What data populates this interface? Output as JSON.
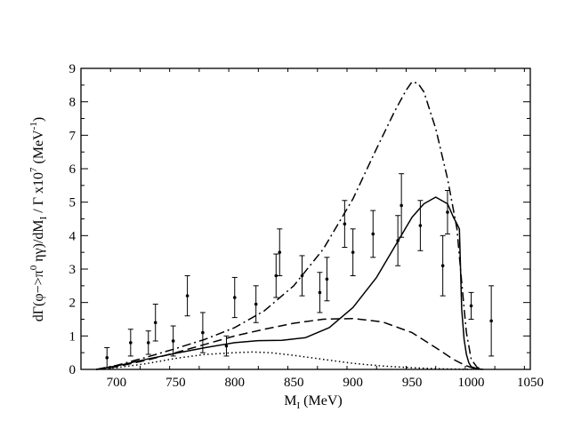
{
  "chart_data": {
    "type": "line",
    "title": "",
    "xlabel": {
      "main": "M",
      "sub": "I",
      "rest": " (MeV)"
    },
    "ylabel": {
      "p1": "dΓ(φ−>π",
      "sup1": "0",
      "p2": " ηγ)/dM",
      "sub1": "I",
      "p3": " / Γ  x10",
      "sup2": "7",
      "p4": " (MeV",
      "sup3": "-1",
      "p5": ")"
    },
    "xlim": [
      670,
      1050
    ],
    "ylim": [
      0,
      9
    ],
    "x_ticks": [
      700,
      750,
      800,
      850,
      900,
      950,
      1000,
      1050
    ],
    "x_tick_labels": [
      "700",
      "750",
      "800",
      "850",
      "900",
      "950",
      "1000",
      "1050"
    ],
    "y_ticks": [
      0,
      1,
      2,
      3,
      4,
      5,
      6,
      7,
      8,
      9
    ],
    "y_tick_labels": [
      "0",
      "1",
      "2",
      "3",
      "4",
      "5",
      "6",
      "7",
      "8",
      "9"
    ],
    "colors": {
      "ink": "#000000",
      "background": "#ffffff"
    },
    "series": [
      {
        "name": "solid",
        "dash": "solid",
        "x": [
          683,
          700,
          725,
          750,
          775,
          800,
          820,
          840,
          860,
          880,
          900,
          920,
          940,
          950,
          960,
          970,
          980,
          985,
          988,
          990,
          991,
          992,
          994,
          996,
          998,
          1000,
          1005,
          1010
        ],
        "y": [
          0,
          0.1,
          0.3,
          0.48,
          0.65,
          0.8,
          0.86,
          0.87,
          0.95,
          1.25,
          1.85,
          2.75,
          3.95,
          4.55,
          4.95,
          5.15,
          4.95,
          4.55,
          4.35,
          4.2,
          3.0,
          1.8,
          0.9,
          0.45,
          0.2,
          0.08,
          0.02,
          0
        ]
      },
      {
        "name": "dashed",
        "dash": "dashed",
        "x": [
          683,
          700,
          725,
          750,
          775,
          800,
          825,
          850,
          875,
          900,
          925,
          950,
          970,
          985,
          995,
          1005
        ],
        "y": [
          0,
          0.08,
          0.27,
          0.5,
          0.75,
          1.0,
          1.2,
          1.38,
          1.5,
          1.52,
          1.42,
          1.1,
          0.65,
          0.3,
          0.12,
          0.0
        ]
      },
      {
        "name": "dotted",
        "dash": "dotted",
        "x": [
          683,
          700,
          725,
          750,
          775,
          800,
          815,
          830,
          850,
          875,
          900,
          925,
          950,
          970,
          990,
          1000
        ],
        "y": [
          0,
          0.05,
          0.17,
          0.33,
          0.45,
          0.5,
          0.52,
          0.5,
          0.42,
          0.3,
          0.18,
          0.1,
          0.05,
          0.02,
          0.005,
          0
        ]
      },
      {
        "name": "dash-dot",
        "dash": "dashdot",
        "x": [
          683,
          700,
          725,
          750,
          775,
          800,
          825,
          850,
          875,
          900,
          920,
          935,
          945,
          950,
          955,
          960,
          970,
          980,
          988,
          992,
          996,
          1000,
          1005,
          1010
        ],
        "y": [
          0,
          0.12,
          0.36,
          0.62,
          0.9,
          1.25,
          1.75,
          2.5,
          3.6,
          5.1,
          6.6,
          7.7,
          8.35,
          8.6,
          8.55,
          8.3,
          7.2,
          5.7,
          4.2,
          2.6,
          1.1,
          0.3,
          0.06,
          0
        ]
      }
    ],
    "data_points": {
      "x": [
        692,
        712,
        727,
        733,
        748,
        760,
        773,
        793,
        800,
        818,
        835,
        838,
        857,
        872,
        878,
        893,
        900,
        917,
        938,
        941,
        957,
        976,
        980,
        1000,
        1017
      ],
      "y": [
        0.35,
        0.8,
        0.8,
        1.4,
        0.85,
        2.2,
        1.1,
        0.7,
        2.15,
        1.95,
        2.8,
        3.5,
        2.8,
        2.3,
        2.7,
        4.35,
        3.5,
        4.05,
        3.85,
        4.9,
        4.3,
        3.1,
        4.7,
        1.9,
        1.45
      ],
      "err": [
        0.3,
        0.4,
        0.35,
        0.55,
        0.45,
        0.6,
        0.6,
        0.3,
        0.6,
        0.55,
        0.65,
        0.7,
        0.6,
        0.6,
        0.65,
        0.7,
        0.7,
        0.7,
        0.75,
        0.95,
        0.75,
        0.9,
        0.65,
        0.4,
        1.05
      ]
    }
  }
}
